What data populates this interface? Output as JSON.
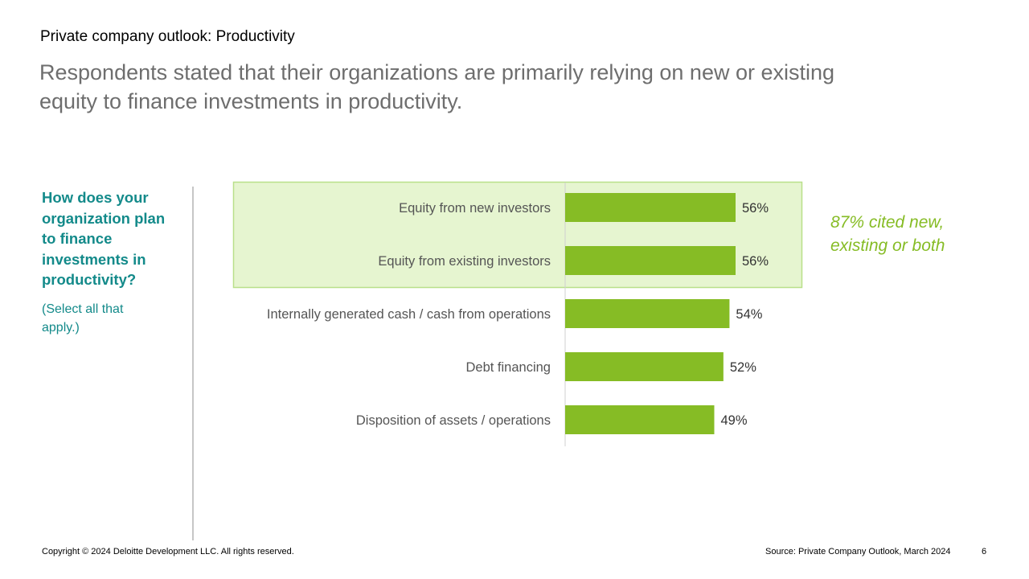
{
  "slide": {
    "section_title": "Private company outlook: Productivity",
    "headline": "Respondents stated that their organizations are primarily relying on new or existing equity to finance investments in productivity.",
    "question": "How does your organization plan to finance investments in productivity?",
    "question_note": "(Select all that apply.)",
    "callout": "87% cited new, existing or both",
    "footer": {
      "copyright": "Copyright © 2024 Deloitte Development LLC. All rights reserved.",
      "source": "Source: Private Company Outlook, March 2024",
      "page_number": "6"
    }
  },
  "colors": {
    "bar": "#86bc25",
    "highlight_fill": "#e6f5d0",
    "highlight_border": "#b9e08a",
    "question_text": "#138a8a",
    "callout_text": "#86bc25"
  },
  "chart_data": {
    "type": "bar",
    "orientation": "horizontal",
    "categories": [
      "Equity from new investors",
      "Equity from existing investors",
      "Internally generated cash / cash from operations",
      "Debt financing",
      "Disposition of assets / operations"
    ],
    "values": [
      56,
      56,
      54,
      52,
      49
    ],
    "value_labels": [
      "56%",
      "56%",
      "54%",
      "52%",
      "49%"
    ],
    "highlighted_categories": [
      0,
      1
    ],
    "unit": "%",
    "xlim": [
      0,
      100
    ],
    "grid": false,
    "legend": "none"
  }
}
